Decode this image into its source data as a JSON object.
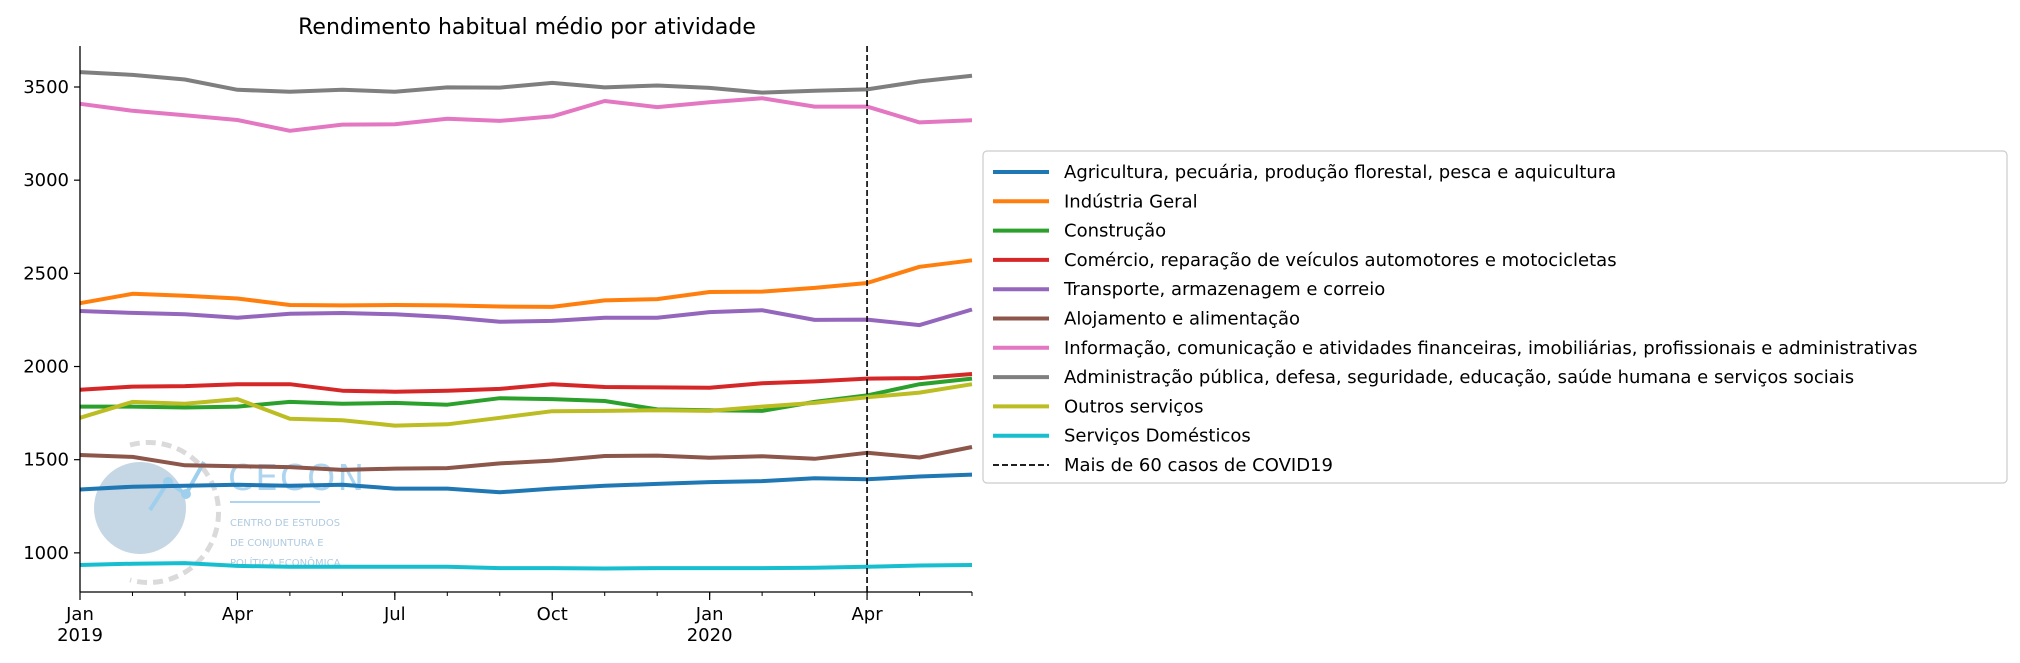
{
  "chart_data": {
    "type": "line",
    "title": "Rendimento habitual médio por atividade",
    "xlabel": "",
    "ylabel": "",
    "x": [
      "2019-01",
      "2019-02",
      "2019-03",
      "2019-04",
      "2019-05",
      "2019-06",
      "2019-07",
      "2019-08",
      "2019-09",
      "2019-10",
      "2019-11",
      "2019-12",
      "2020-01",
      "2020-02",
      "2020-03",
      "2020-04",
      "2020-05",
      "2020-06"
    ],
    "xlim": [
      "2019-01",
      "2020-06"
    ],
    "x_ticks": [
      {
        "x": "2019-01",
        "label": "Jan",
        "sublabel": "2019"
      },
      {
        "x": "2019-04",
        "label": "Apr",
        "sublabel": ""
      },
      {
        "x": "2019-07",
        "label": "Jul",
        "sublabel": ""
      },
      {
        "x": "2019-10",
        "label": "Oct",
        "sublabel": ""
      },
      {
        "x": "2020-01",
        "label": "Jan",
        "sublabel": "2020"
      },
      {
        "x": "2020-04",
        "label": "Apr",
        "sublabel": ""
      }
    ],
    "ylim": [
      790,
      3720
    ],
    "y_ticks": [
      1000,
      1500,
      2000,
      2500,
      3000,
      3500
    ],
    "grid": false,
    "legend_position": "right",
    "series": [
      {
        "name": "Agricultura, pecuária, produção florestal, pesca e aquicultura",
        "color": "#1f77b4",
        "values": [
          1340,
          1355,
          1360,
          1365,
          1360,
          1365,
          1345,
          1345,
          1325,
          1345,
          1360,
          1370,
          1380,
          1385,
          1400,
          1395,
          1410,
          1420
        ]
      },
      {
        "name": "Indústria Geral",
        "color": "#ff7f0e",
        "values": [
          2340,
          2390,
          2380,
          2365,
          2330,
          2328,
          2330,
          2328,
          2322,
          2320,
          2355,
          2362,
          2400,
          2402,
          2422,
          2448,
          2535,
          2570
        ]
      },
      {
        "name": "Construção",
        "color": "#2ca02c",
        "values": [
          1785,
          1785,
          1780,
          1785,
          1810,
          1800,
          1805,
          1795,
          1830,
          1825,
          1815,
          1770,
          1765,
          1762,
          1810,
          1845,
          1905,
          1935
        ]
      },
      {
        "name": "Comércio, reparação de veículos automotores e motocicletas",
        "color": "#d62728",
        "values": [
          1875,
          1892,
          1895,
          1905,
          1905,
          1870,
          1865,
          1870,
          1880,
          1905,
          1890,
          1888,
          1886,
          1910,
          1920,
          1935,
          1938,
          1960
        ]
      },
      {
        "name": "Transporte, armazenagem e correio",
        "color": "#9467bd",
        "values": [
          2298,
          2288,
          2280,
          2262,
          2283,
          2287,
          2280,
          2265,
          2240,
          2245,
          2262,
          2262,
          2292,
          2302,
          2250,
          2252,
          2222,
          2306
        ]
      },
      {
        "name": "Alojamento e alimentação",
        "color": "#8c564b",
        "values": [
          1525,
          1515,
          1470,
          1465,
          1460,
          1445,
          1452,
          1455,
          1480,
          1495,
          1520,
          1522,
          1510,
          1518,
          1505,
          1537,
          1512,
          1568
        ]
      },
      {
        "name": "Informação, comunicação e atividades financeiras, imobiliárias, profissionais e administrativas",
        "color": "#e377c2",
        "values": [
          3410,
          3372,
          3348,
          3323,
          3265,
          3298,
          3300,
          3330,
          3318,
          3342,
          3425,
          3392,
          3418,
          3440,
          3395,
          3395,
          3310,
          3322
        ]
      },
      {
        "name": "Administração pública, defesa, seguridade, educação, saúde humana e serviços sociais",
        "color": "#7f7f7f",
        "values": [
          3580,
          3565,
          3540,
          3485,
          3475,
          3485,
          3475,
          3498,
          3497,
          3522,
          3498,
          3508,
          3495,
          3470,
          3480,
          3487,
          3530,
          3560
        ]
      },
      {
        "name": "Outros serviços",
        "color": "#bcbd22",
        "values": [
          1725,
          1810,
          1800,
          1825,
          1720,
          1712,
          1683,
          1690,
          1725,
          1760,
          1762,
          1765,
          1762,
          1785,
          1805,
          1835,
          1860,
          1905
        ]
      },
      {
        "name": "Serviços Domésticos",
        "color": "#17becf",
        "values": [
          935,
          942,
          945,
          930,
          925,
          925,
          925,
          925,
          918,
          918,
          916,
          918,
          918,
          918,
          920,
          925,
          932,
          935
        ]
      }
    ],
    "annotations": [
      {
        "type": "vline",
        "x": "2020-04",
        "name": "Mais de 60 casos de COVID19",
        "color": "#000000",
        "style": "dashed"
      }
    ]
  },
  "watermark": {
    "name": "CECON",
    "line1": "CENTRO DE ESTUDOS",
    "line2": "DE CONJUNTURA E",
    "line3": "POLÍTICA ECONÔMICA"
  }
}
